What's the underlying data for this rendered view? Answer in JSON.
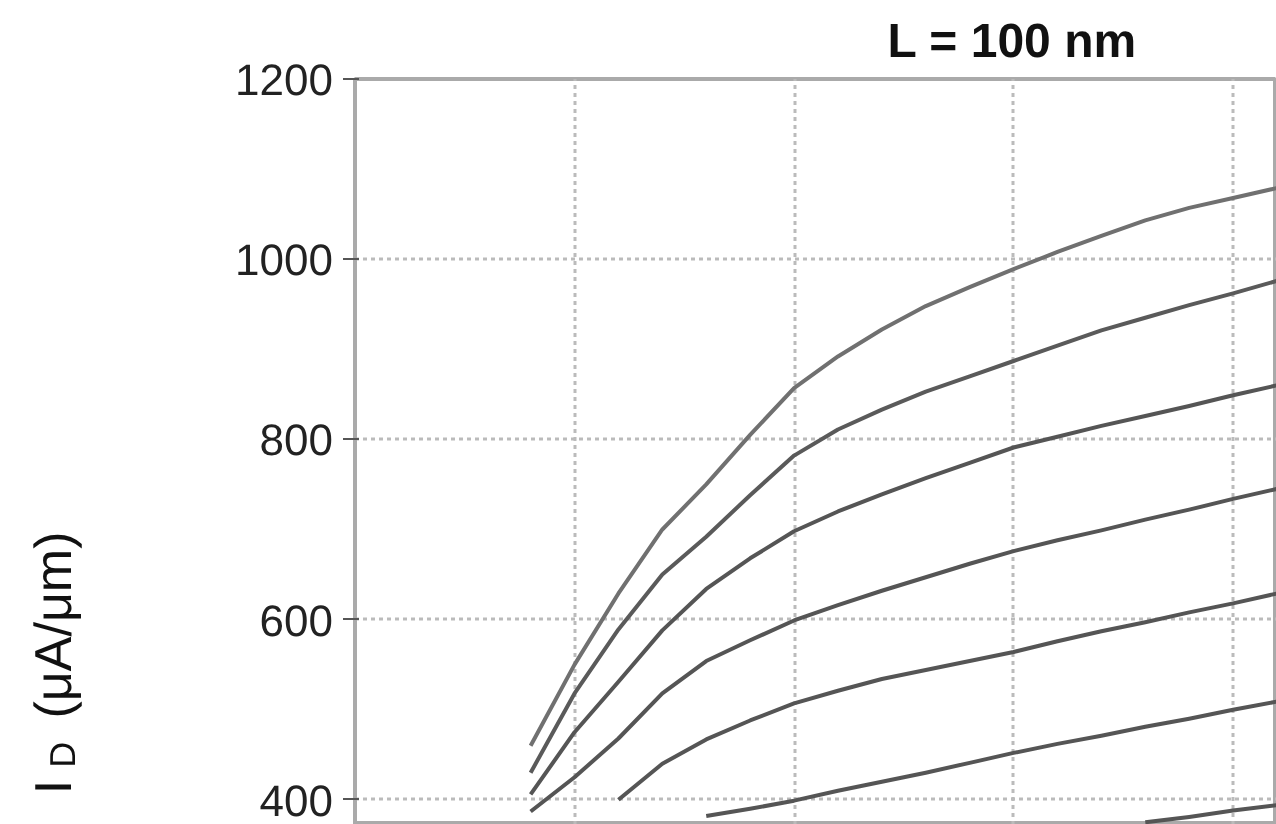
{
  "chart_data": {
    "type": "line",
    "title": "L = 100 nm",
    "ylabel": "I$_{D}$ (μA/μm)",
    "categories": [
      null,
      null,
      null,
      null,
      null,
      null,
      null,
      null,
      null,
      null,
      null,
      null,
      null,
      null,
      null,
      null,
      null,
      null,
      null,
      null,
      null,
      null
    ],
    "ylim": [
      372,
      1200
    ],
    "yticks": [
      400,
      600,
      800,
      1000,
      1200
    ],
    "grid": true,
    "tick_labels": "y",
    "marker": "none",
    "line_style": "solid",
    "series": [
      {
        "color": "#707070",
        "values": [
          null,
          null,
          null,
          null,
          460,
          550,
          629,
          700,
          750,
          805,
          857,
          892,
          922,
          948,
          969,
          989,
          1008,
          1026,
          1043,
          1057,
          1068,
          1079
        ]
      },
      {
        "color": "#5a5a5a",
        "values": [
          null,
          null,
          null,
          null,
          430,
          518,
          589,
          650,
          692,
          738,
          782,
          811,
          833,
          853,
          870,
          887,
          904,
          921,
          935,
          949,
          962,
          976
        ]
      },
      {
        "color": "#555555",
        "values": [
          null,
          null,
          null,
          null,
          406,
          475,
          531,
          588,
          634,
          668,
          698,
          720,
          739,
          757,
          774,
          791,
          803,
          815,
          826,
          837,
          849,
          860
        ]
      },
      {
        "color": "#555555",
        "values": [
          null,
          null,
          null,
          null,
          387,
          425,
          468,
          518,
          554,
          577,
          599,
          616,
          632,
          647,
          662,
          676,
          688,
          699,
          711,
          722,
          734,
          745
        ]
      },
      {
        "color": "#555555",
        "values": [
          null,
          null,
          null,
          null,
          null,
          null,
          400,
          440,
          467,
          488,
          507,
          521,
          534,
          544,
          554,
          564,
          576,
          587,
          597,
          608,
          618,
          629
        ]
      },
      {
        "color": "#555555",
        "values": [
          null,
          null,
          null,
          null,
          null,
          null,
          null,
          null,
          382,
          390,
          399,
          410,
          420,
          430,
          441,
          452,
          462,
          471,
          481,
          490,
          500,
          509
        ]
      },
      {
        "color": "#555555",
        "values": [
          null,
          null,
          null,
          null,
          null,
          null,
          null,
          null,
          null,
          null,
          null,
          null,
          null,
          null,
          null,
          null,
          null,
          null,
          375,
          381,
          388,
          394
        ]
      }
    ]
  }
}
